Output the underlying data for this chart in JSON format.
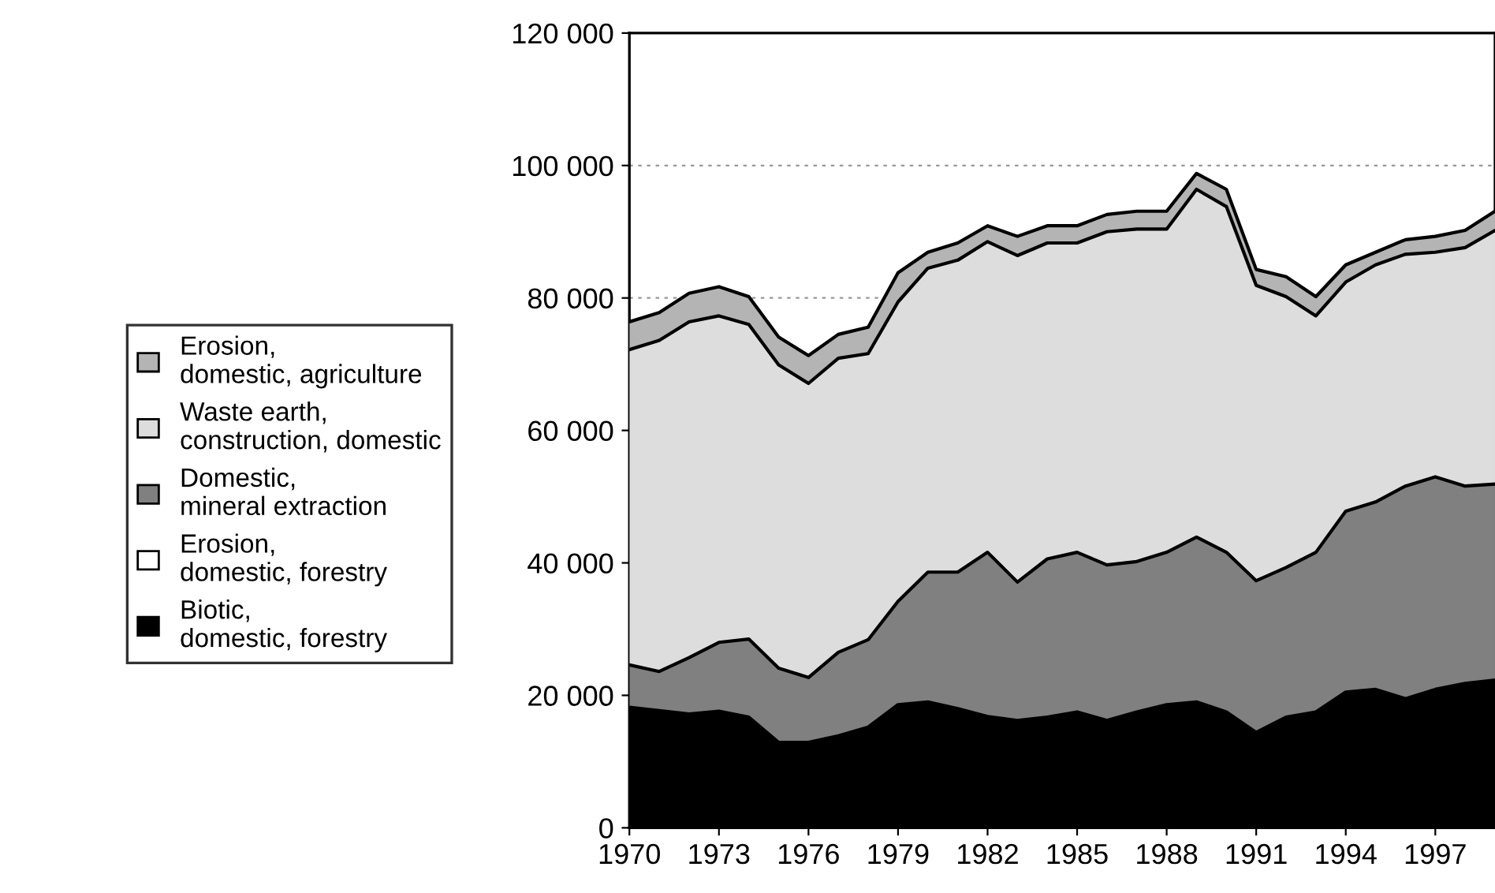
{
  "chart_data": {
    "type": "area",
    "stacked": true,
    "x": [
      1970,
      1971,
      1972,
      1973,
      1974,
      1975,
      1976,
      1977,
      1978,
      1979,
      1980,
      1981,
      1982,
      1983,
      1984,
      1985,
      1986,
      1987,
      1988,
      1989,
      1990,
      1991,
      1992,
      1993,
      1994,
      1995,
      1996,
      1997,
      1998,
      1999
    ],
    "series": [
      {
        "name": "Biotic, domestic, forestry",
        "color": "#000000",
        "values": [
          18200,
          17700,
          17200,
          17600,
          16700,
          12900,
          12900,
          13900,
          15200,
          18600,
          19000,
          18000,
          16800,
          16200,
          16700,
          17500,
          16200,
          17500,
          18600,
          19000,
          17500,
          14400,
          16700,
          17500,
          20500,
          20900,
          19500,
          20900,
          21800,
          22300
        ]
      },
      {
        "name": "Erosion, domestic, forestry",
        "color": "#ffffff",
        "values": [
          null,
          null,
          null,
          null,
          null,
          null,
          null,
          null,
          null,
          null,
          null,
          null,
          null,
          null,
          null,
          null,
          null,
          null,
          null,
          null,
          null,
          null,
          null,
          null,
          null,
          null,
          null,
          null,
          null,
          null
        ]
      },
      {
        "name": "Domestic, mineral extraction",
        "color": "#808080",
        "values": [
          6400,
          5900,
          8500,
          10400,
          11800,
          11200,
          9800,
          12600,
          13200,
          15600,
          19600,
          20600,
          24800,
          20900,
          23900,
          24100,
          23500,
          22700,
          23000,
          24900,
          24100,
          22900,
          22600,
          24100,
          27300,
          28300,
          32100,
          32100,
          29800,
          29600
        ]
      },
      {
        "name": "Waste earth, construction, domestic",
        "color": "#dddddd",
        "values": [
          47600,
          50000,
          50700,
          49300,
          47500,
          45800,
          44400,
          44400,
          43200,
          45200,
          45900,
          47100,
          46900,
          49300,
          47700,
          46700,
          50300,
          50200,
          48800,
          52500,
          52200,
          44600,
          40900,
          35700,
          34600,
          35800,
          35000,
          33900,
          36000,
          38300
        ]
      },
      {
        "name": "Erosion, domestic, agriculture",
        "color": "#b4b4b4",
        "values": [
          4200,
          4200,
          4300,
          4400,
          4200,
          4200,
          4200,
          3600,
          4000,
          4400,
          2400,
          2600,
          2400,
          2900,
          2600,
          2600,
          2600,
          2700,
          2700,
          2400,
          2600,
          2400,
          3000,
          2900,
          2600,
          1900,
          2200,
          2400,
          2600,
          2900
        ]
      }
    ],
    "xlim": [
      1970,
      1999
    ],
    "xticks": [
      1970,
      1973,
      1976,
      1979,
      1982,
      1985,
      1988,
      1991,
      1994,
      1997
    ],
    "ylim": [
      0,
      120000
    ],
    "yticks": [
      {
        "value": 0,
        "label": "0"
      },
      {
        "value": 20000,
        "label": "20 000"
      },
      {
        "value": 40000,
        "label": "40 000"
      },
      {
        "value": 60000,
        "label": "60 000"
      },
      {
        "value": 80000,
        "label": "80 000"
      },
      {
        "value": 100000,
        "label": "100 000"
      },
      {
        "value": 120000,
        "label": "120 000"
      }
    ],
    "grid": "y",
    "legend": "left"
  }
}
